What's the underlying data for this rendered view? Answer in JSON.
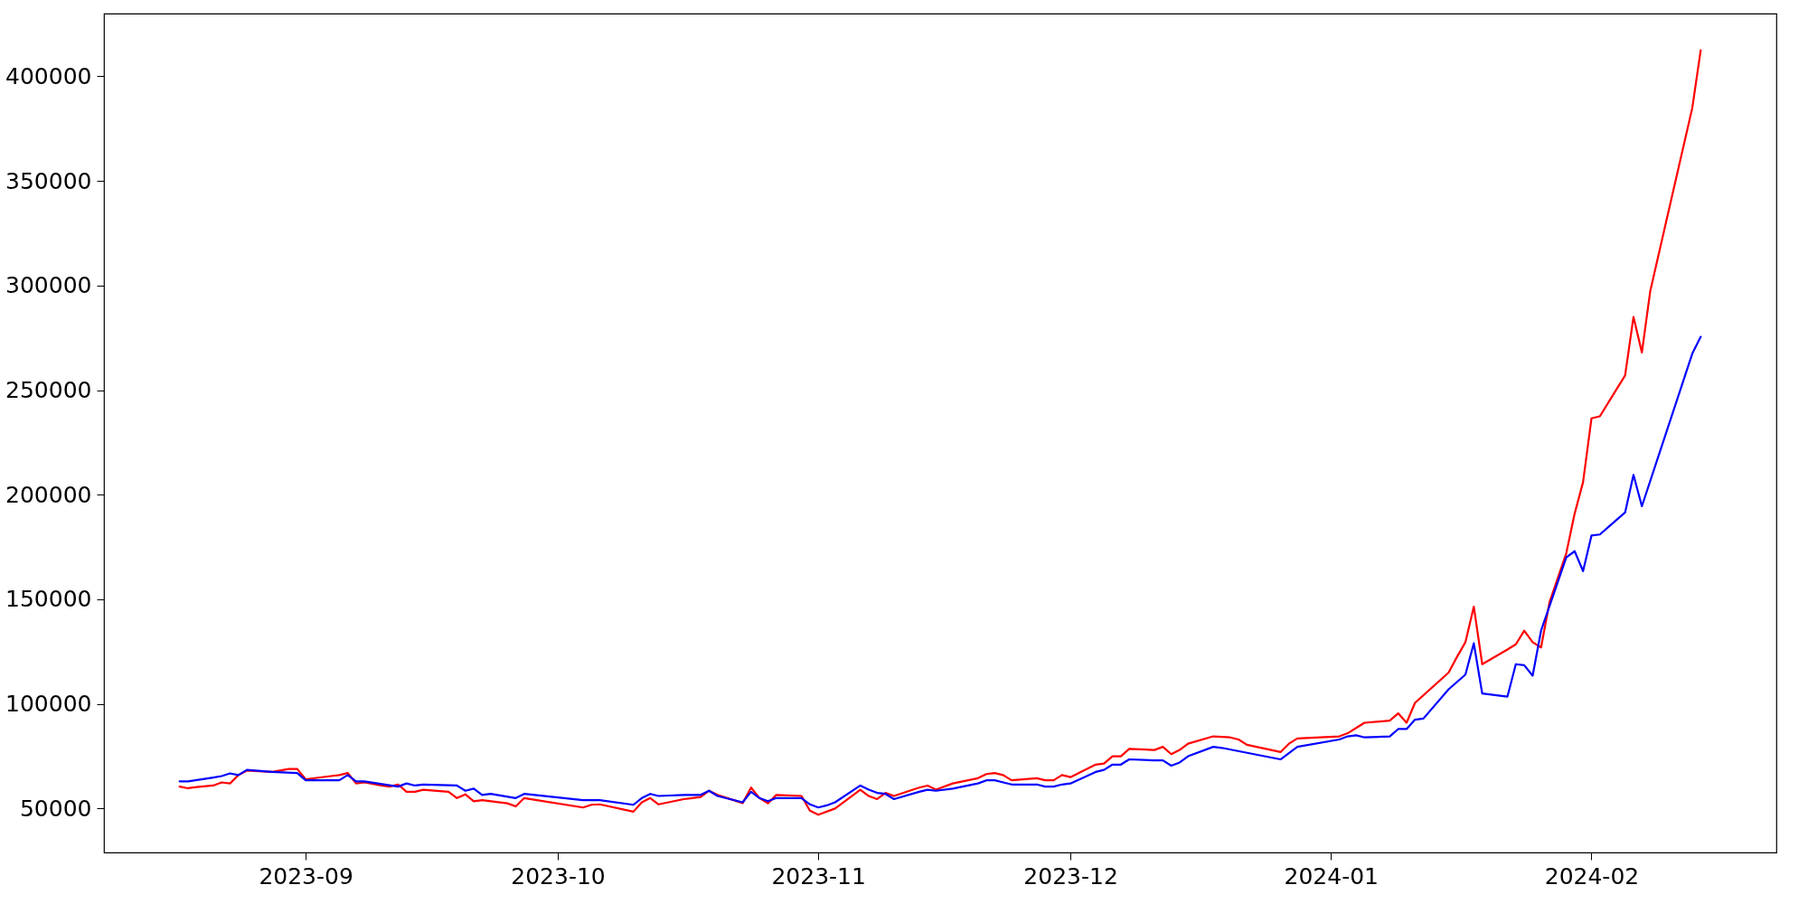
{
  "chart_data": {
    "type": "line",
    "xlim": [
      "2023-08-08",
      "2024-02-23"
    ],
    "xticks": [
      "2023-09",
      "2023-10",
      "2023-11",
      "2023-12",
      "2024-01",
      "2024-02"
    ],
    "ylim": [
      29000,
      430000
    ],
    "yticks": [
      50000,
      100000,
      150000,
      200000,
      250000,
      300000,
      350000,
      400000
    ],
    "grid": false,
    "legend": false,
    "line_style": "solid",
    "marker": "none",
    "series": [
      {
        "color": "#ff0000",
        "x": [
          "2023-08-17",
          "2023-08-18",
          "2023-08-19",
          "2023-08-21",
          "2023-08-22",
          "2023-08-23",
          "2023-08-24",
          "2023-08-25",
          "2023-08-28",
          "2023-08-30",
          "2023-08-31",
          "2023-09-01",
          "2023-09-04",
          "2023-09-05",
          "2023-09-06",
          "2023-09-07",
          "2023-09-08",
          "2023-09-10",
          "2023-09-11",
          "2023-09-12",
          "2023-09-13",
          "2023-09-14",
          "2023-09-15",
          "2023-09-18",
          "2023-09-19",
          "2023-09-20",
          "2023-09-21",
          "2023-09-22",
          "2023-09-25",
          "2023-09-26",
          "2023-09-27",
          "2023-10-04",
          "2023-10-05",
          "2023-10-06",
          "2023-10-10",
          "2023-10-11",
          "2023-10-12",
          "2023-10-13",
          "2023-10-16",
          "2023-10-18",
          "2023-10-19",
          "2023-10-20",
          "2023-10-23",
          "2023-10-24",
          "2023-10-25",
          "2023-10-26",
          "2023-10-27",
          "2023-10-30",
          "2023-10-31",
          "2023-11-01",
          "2023-11-03",
          "2023-11-06",
          "2023-11-07",
          "2023-11-08",
          "2023-11-09",
          "2023-11-10",
          "2023-11-13",
          "2023-11-14",
          "2023-11-15",
          "2023-11-17",
          "2023-11-20",
          "2023-11-21",
          "2023-11-22",
          "2023-11-23",
          "2023-11-24",
          "2023-11-27",
          "2023-11-28",
          "2023-11-29",
          "2023-11-30",
          "2023-12-01",
          "2023-12-04",
          "2023-12-05",
          "2023-12-06",
          "2023-12-07",
          "2023-12-08",
          "2023-12-11",
          "2023-12-12",
          "2023-12-13",
          "2023-12-14",
          "2023-12-15",
          "2023-12-18",
          "2023-12-20",
          "2023-12-21",
          "2023-12-22",
          "2023-12-26",
          "2023-12-27",
          "2023-12-28",
          "2024-01-02",
          "2024-01-03",
          "2024-01-04",
          "2024-01-05",
          "2024-01-08",
          "2024-01-09",
          "2024-01-10",
          "2024-01-11",
          "2024-01-15",
          "2024-01-16",
          "2024-01-17",
          "2024-01-18",
          "2024-01-19",
          "2024-01-22",
          "2024-01-23",
          "2024-01-24",
          "2024-01-25",
          "2024-01-26",
          "2024-01-27",
          "2024-01-29",
          "2024-01-30",
          "2024-01-31",
          "2024-02-01",
          "2024-02-02",
          "2024-02-05",
          "2024-02-06",
          "2024-02-07",
          "2024-02-08",
          "2024-02-13",
          "2024-02-14"
        ],
        "values": [
          60500,
          59700,
          60300,
          61000,
          62500,
          62000,
          66000,
          68100,
          67500,
          68900,
          68900,
          64000,
          65500,
          66000,
          67000,
          62000,
          62500,
          61000,
          60500,
          61500,
          58000,
          58000,
          59000,
          58000,
          55000,
          56800,
          53500,
          54000,
          52500,
          51000,
          55000,
          50500,
          51800,
          52000,
          48500,
          53000,
          55000,
          52000,
          54500,
          55500,
          58500,
          56500,
          52600,
          60000,
          55000,
          52500,
          56500,
          56000,
          49000,
          47000,
          50000,
          59000,
          56000,
          54500,
          57500,
          56000,
          60000,
          61000,
          59000,
          62000,
          64500,
          66500,
          67000,
          66000,
          63500,
          64500,
          63500,
          63500,
          66000,
          65000,
          71000,
          71500,
          75000,
          75000,
          78500,
          78000,
          79500,
          76000,
          78000,
          81000,
          84500,
          84000,
          83000,
          80500,
          77000,
          81000,
          83500,
          84500,
          86000,
          88500,
          91000,
          92000,
          95500,
          91000,
          100500,
          115000,
          122500,
          129500,
          146500,
          119000,
          126000,
          128500,
          135000,
          129500,
          127000,
          148500,
          172000,
          191000,
          206000,
          236500,
          237500,
          257000,
          285000,
          268000,
          297500,
          385000,
          412500
        ]
      },
      {
        "color": "#0000ff",
        "x": [
          "2023-08-17",
          "2023-08-18",
          "2023-08-21",
          "2023-08-22",
          "2023-08-23",
          "2023-08-24",
          "2023-08-25",
          "2023-08-28",
          "2023-08-31",
          "2023-09-01",
          "2023-09-05",
          "2023-09-06",
          "2023-09-07",
          "2023-09-08",
          "2023-09-12",
          "2023-09-13",
          "2023-09-14",
          "2023-09-15",
          "2023-09-19",
          "2023-09-20",
          "2023-09-21",
          "2023-09-22",
          "2023-09-23",
          "2023-09-26",
          "2023-09-27",
          "2023-10-04",
          "2023-10-06",
          "2023-10-10",
          "2023-10-11",
          "2023-10-12",
          "2023-10-13",
          "2023-10-16",
          "2023-10-18",
          "2023-10-19",
          "2023-10-20",
          "2023-10-23",
          "2023-10-24",
          "2023-10-25",
          "2023-10-26",
          "2023-10-27",
          "2023-10-30",
          "2023-10-31",
          "2023-11-01",
          "2023-11-02",
          "2023-11-03",
          "2023-11-06",
          "2023-11-07",
          "2023-11-08",
          "2023-11-09",
          "2023-11-10",
          "2023-11-13",
          "2023-11-14",
          "2023-11-15",
          "2023-11-17",
          "2023-11-20",
          "2023-11-21",
          "2023-11-22",
          "2023-11-23",
          "2023-11-24",
          "2023-11-27",
          "2023-11-28",
          "2023-11-29",
          "2023-11-30",
          "2023-12-01",
          "2023-12-04",
          "2023-12-05",
          "2023-12-06",
          "2023-12-07",
          "2023-12-08",
          "2023-12-11",
          "2023-12-12",
          "2023-12-13",
          "2023-12-14",
          "2023-12-15",
          "2023-12-18",
          "2023-12-19",
          "2023-12-26",
          "2023-12-28",
          "2024-01-02",
          "2024-01-03",
          "2024-01-04",
          "2024-01-05",
          "2024-01-08",
          "2024-01-09",
          "2024-01-10",
          "2024-01-11",
          "2024-01-12",
          "2024-01-15",
          "2024-01-17",
          "2024-01-18",
          "2024-01-19",
          "2024-01-22",
          "2024-01-23",
          "2024-01-24",
          "2024-01-25",
          "2024-01-26",
          "2024-01-29",
          "2024-01-30",
          "2024-01-31",
          "2024-02-01",
          "2024-02-02",
          "2024-02-05",
          "2024-02-06",
          "2024-02-07",
          "2024-02-13",
          "2024-02-14"
        ],
        "values": [
          63000,
          63000,
          64800,
          65500,
          66800,
          66000,
          68500,
          67500,
          67000,
          63500,
          63500,
          66000,
          63000,
          63000,
          60500,
          62000,
          61000,
          61500,
          61000,
          58500,
          59500,
          56500,
          57000,
          55000,
          57000,
          54000,
          54000,
          51800,
          55000,
          57000,
          56000,
          56500,
          56500,
          58500,
          56000,
          53000,
          58000,
          55000,
          53500,
          55000,
          55000,
          52000,
          50500,
          51500,
          53000,
          61000,
          59000,
          57500,
          57000,
          54500,
          58000,
          59000,
          58500,
          59500,
          62000,
          63500,
          63500,
          62500,
          61500,
          61500,
          60500,
          60500,
          61500,
          62000,
          67500,
          68500,
          71000,
          71000,
          73500,
          73000,
          73000,
          70500,
          72000,
          75000,
          79500,
          79000,
          73500,
          79500,
          83000,
          84500,
          85000,
          84000,
          84500,
          88000,
          88000,
          92500,
          93000,
          107000,
          114000,
          129000,
          105000,
          103500,
          119000,
          118500,
          113500,
          135000,
          170000,
          173000,
          163500,
          180500,
          181000,
          191500,
          209500,
          194500,
          267500,
          275500
        ]
      }
    ]
  }
}
